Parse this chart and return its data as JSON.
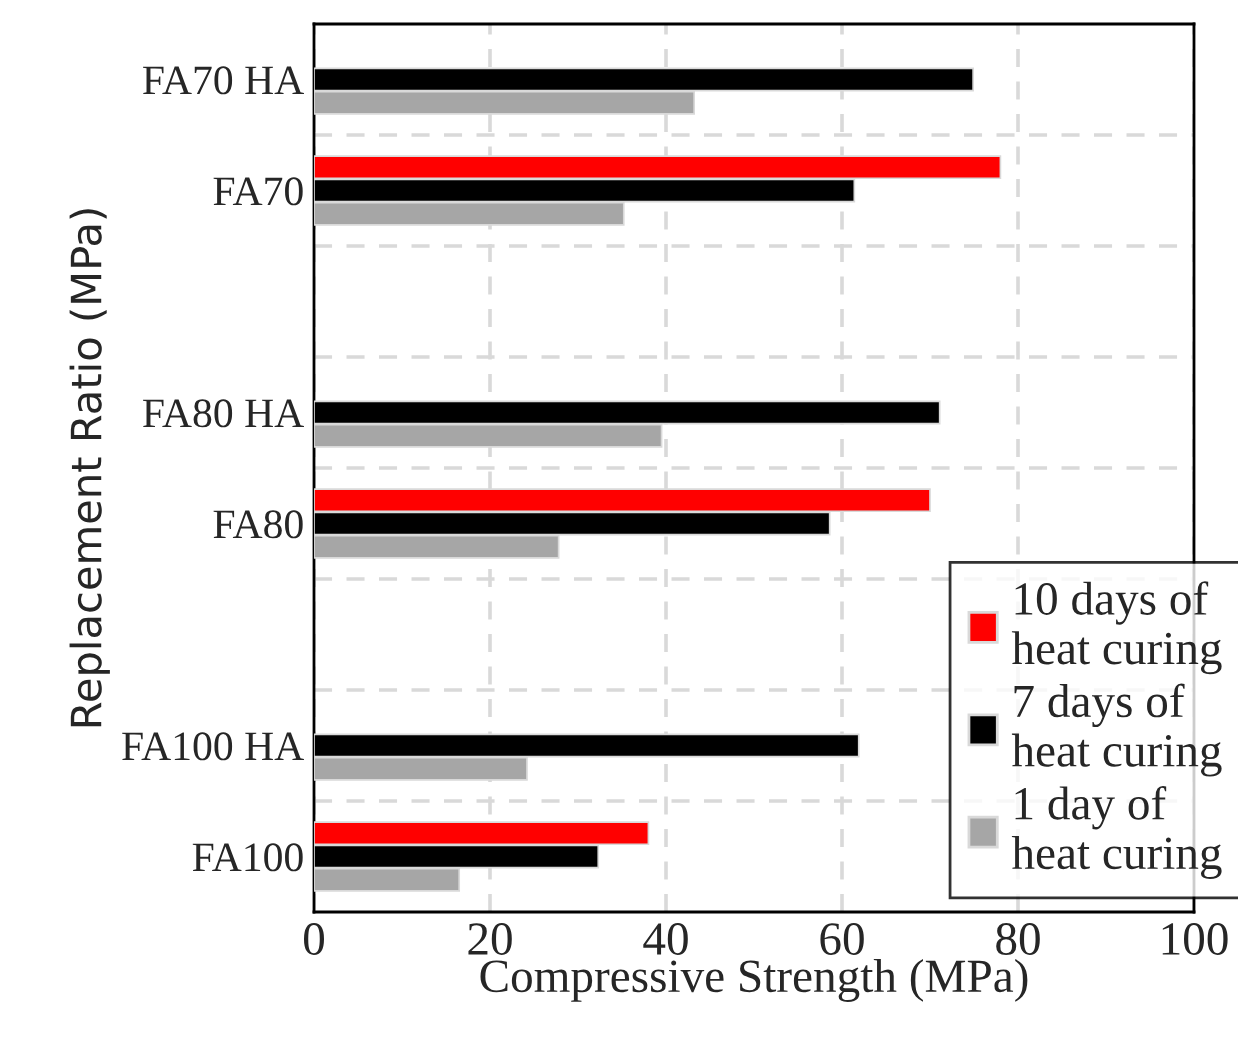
{
  "chart_data": {
    "type": "bar",
    "orientation": "horizontal",
    "xlabel": "Compressive Strength (MPa)",
    "ylabel": "Replacement Ratio (MPa)",
    "categories": [
      "FA70 HA",
      "FA70",
      null,
      "FA80 HA",
      "FA80",
      null,
      "FA100 HA",
      "FA100"
    ],
    "series": [
      {
        "name": "10 days of heat curing",
        "color": "#ff0000",
        "values": [
          null,
          78.0,
          null,
          null,
          70.0,
          null,
          null,
          38.0
        ]
      },
      {
        "name": "7 days of heat curing",
        "color": "#000000",
        "values": [
          74.9,
          61.4,
          null,
          71.1,
          58.6,
          null,
          61.9,
          32.3
        ]
      },
      {
        "name": "1 day of heat curing",
        "color": "#a6a6a6",
        "values": [
          43.2,
          35.2,
          null,
          39.5,
          27.8,
          null,
          24.2,
          16.5
        ]
      }
    ],
    "xlim": [
      0,
      100
    ],
    "xticks": [
      0,
      20,
      40,
      60,
      80,
      100
    ],
    "grid": true,
    "legend": "bottom right"
  }
}
